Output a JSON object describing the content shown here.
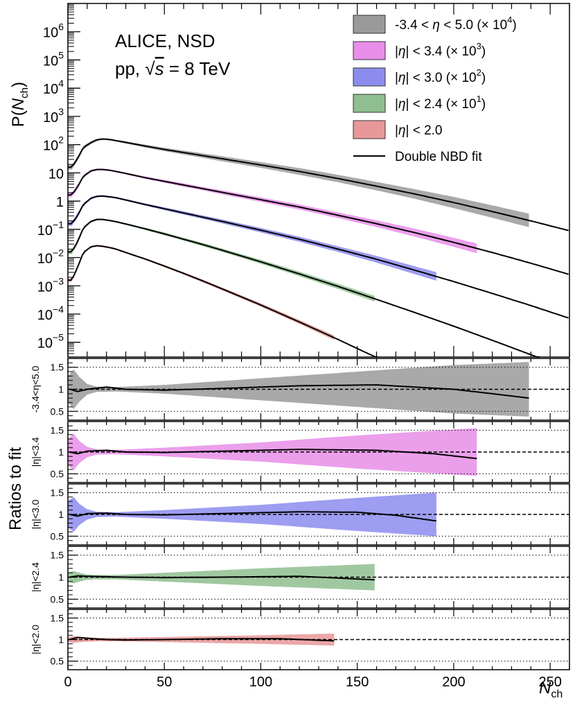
{
  "chart_data": {
    "type": "line",
    "annotation": {
      "collaboration": "ALICE, NSD",
      "system_prefix": "pp, ",
      "sqrt_symbol": "√",
      "energy_var": "s",
      "energy_value": " = 8 TeV"
    },
    "x_axis": {
      "label_main": "N",
      "label_sub": "ch",
      "range": [
        0,
        260
      ],
      "ticks": [
        0,
        50,
        100,
        150,
        200,
        250
      ],
      "tick_labels": [
        "0",
        "50",
        "100",
        "150",
        "200",
        "250"
      ]
    },
    "top_panel": {
      "ylabel_main": "P(",
      "ylabel_var": "N",
      "ylabel_sub": "ch",
      "ylabel_close": ")",
      "scale": "log",
      "ylim": [
        3e-06,
        10000000
      ],
      "y_ticks": [
        {
          "value": 1000000,
          "base": "10",
          "exp": "6"
        },
        {
          "value": 100000,
          "base": "10",
          "exp": "5"
        },
        {
          "value": 10000,
          "base": "10",
          "exp": "4"
        },
        {
          "value": 1000,
          "base": "10",
          "exp": "3"
        },
        {
          "value": 100,
          "base": "10",
          "exp": "2"
        },
        {
          "value": 10,
          "base": "10",
          "exp": ""
        },
        {
          "value": 1,
          "base": "1",
          "exp": ""
        },
        {
          "value": 0.1,
          "base": "10",
          "exp": "−1"
        },
        {
          "value": 0.01,
          "base": "10",
          "exp": "−2"
        },
        {
          "value": 0.001,
          "base": "10",
          "exp": "−3"
        },
        {
          "value": 0.0001,
          "base": "10",
          "exp": "−4"
        },
        {
          "value": 1e-05,
          "base": "10",
          "exp": "−5"
        }
      ]
    },
    "fit_points_x": [
      0,
      2,
      5,
      8,
      12,
      15,
      18,
      22,
      25,
      30,
      40,
      50,
      60,
      70,
      80,
      100,
      120,
      140,
      160,
      180,
      200,
      220,
      240,
      260
    ],
    "series": [
      {
        "name": "-3.4 < η < 5.0 (× 10⁴)",
        "legend": {
          "pre": "-3.4 < ",
          "var": "η",
          "mid": " < 5.0 (× 10",
          "exp": "4",
          "post": ")"
        },
        "color": "#9a9a9a",
        "fill_opacity": 0.85,
        "data_xmax": 239,
        "fit": [
          1.2,
          1.2,
          1.5,
          1.9,
          2.07,
          2.17,
          2.2,
          2.18,
          2.14,
          2.08,
          1.95,
          1.83,
          1.72,
          1.61,
          1.5,
          1.28,
          1.05,
          0.8,
          0.53,
          0.25,
          -0.05,
          -0.37,
          -0.7,
          -1.05
        ],
        "band_halfwidth": [
          0.08,
          0.08,
          0.08,
          0.06,
          0.05,
          0.04,
          0.03,
          0.03,
          0.03,
          0.04,
          0.05,
          0.06,
          0.07,
          0.08,
          0.09,
          0.1,
          0.12,
          0.13,
          0.15,
          0.17,
          0.2,
          0.22,
          0.24,
          0.26
        ],
        "ratio_band": {
          "x": [
            0,
            3,
            6,
            10,
            15,
            25,
            50,
            100,
            150,
            200,
            239
          ],
          "half": [
            0.3,
            0.45,
            0.28,
            0.12,
            0.06,
            0.05,
            0.1,
            0.25,
            0.4,
            0.55,
            0.62
          ]
        },
        "ratio_line": {
          "x": [
            1,
            5,
            10,
            20,
            30,
            50,
            80,
            120,
            160,
            200,
            220,
            239
          ],
          "y": [
            1.0,
            0.95,
            1.0,
            1.05,
            1.0,
            0.98,
            1.02,
            1.08,
            1.1,
            1.0,
            0.9,
            0.8
          ]
        },
        "ratio_ylabel": "-3.4<η<5.0"
      },
      {
        "name": "|η| < 3.4 (× 10³)",
        "legend": {
          "pre": "|",
          "var": "η",
          "mid": "| < 3.4 (× 10",
          "exp": "3",
          "post": ")"
        },
        "color": "#e88ee8",
        "fill_opacity": 0.85,
        "data_xmax": 212,
        "fit": [
          0.22,
          0.22,
          0.5,
          0.88,
          1.07,
          1.12,
          1.12,
          1.09,
          1.05,
          0.98,
          0.83,
          0.7,
          0.57,
          0.44,
          0.31,
          0.05,
          -0.21,
          -0.5,
          -0.8,
          -1.12,
          -1.46,
          -1.82,
          -2.2,
          -2.6
        ],
        "band_halfwidth": [
          0.08,
          0.08,
          0.08,
          0.05,
          0.04,
          0.03,
          0.03,
          0.03,
          0.03,
          0.03,
          0.04,
          0.05,
          0.06,
          0.06,
          0.07,
          0.08,
          0.09,
          0.1,
          0.12,
          0.14,
          0.16,
          0.18,
          0.2,
          0.22
        ],
        "ratio_band": {
          "x": [
            0,
            3,
            6,
            10,
            15,
            25,
            50,
            100,
            150,
            212
          ],
          "half": [
            0.3,
            0.42,
            0.25,
            0.12,
            0.06,
            0.05,
            0.1,
            0.22,
            0.38,
            0.55
          ]
        },
        "ratio_line": {
          "x": [
            1,
            5,
            10,
            20,
            30,
            50,
            80,
            120,
            160,
            190,
            212
          ],
          "y": [
            1.0,
            0.96,
            1.02,
            1.04,
            1.0,
            0.99,
            1.02,
            1.06,
            1.04,
            0.96,
            0.85
          ]
        },
        "ratio_ylabel": "|η|<3.4"
      },
      {
        "name": "|η| < 3.0 (× 10²)",
        "legend": {
          "pre": "|",
          "var": "η",
          "mid": "| < 3.0 (× 10",
          "exp": "2",
          "post": ")"
        },
        "color": "#8c8cee",
        "fill_opacity": 0.85,
        "data_xmax": 191,
        "fit": [
          -0.8,
          -0.8,
          -0.52,
          -0.12,
          0.1,
          0.17,
          0.18,
          0.15,
          0.12,
          0.04,
          -0.12,
          -0.27,
          -0.42,
          -0.57,
          -0.72,
          -1.03,
          -1.35,
          -1.7,
          -2.06,
          -2.45,
          -2.85,
          -3.27,
          -3.7,
          -4.15
        ],
        "band_halfwidth": [
          0.08,
          0.08,
          0.08,
          0.05,
          0.04,
          0.03,
          0.03,
          0.03,
          0.03,
          0.03,
          0.04,
          0.05,
          0.06,
          0.06,
          0.07,
          0.08,
          0.09,
          0.1,
          0.12,
          0.14,
          0.16,
          0.18,
          0.2,
          0.22
        ],
        "ratio_band": {
          "x": [
            0,
            3,
            6,
            10,
            15,
            25,
            50,
            100,
            150,
            191
          ],
          "half": [
            0.3,
            0.4,
            0.24,
            0.12,
            0.06,
            0.05,
            0.1,
            0.22,
            0.38,
            0.5
          ]
        },
        "ratio_line": {
          "x": [
            1,
            5,
            10,
            20,
            30,
            50,
            80,
            120,
            150,
            170,
            191
          ],
          "y": [
            1.0,
            0.96,
            1.02,
            1.03,
            1.0,
            0.99,
            1.02,
            1.06,
            1.05,
            0.98,
            0.85
          ]
        },
        "ratio_ylabel": "|η|<3.0"
      },
      {
        "name": "|η| < 2.4 (× 10¹)",
        "legend": {
          "pre": "|",
          "var": "η",
          "mid": "| < 2.4 (× 10",
          "exp": "1",
          "post": ")"
        },
        "color": "#8fbe8f",
        "fill_opacity": 0.85,
        "data_xmax": 159,
        "fit": [
          -1.8,
          -1.8,
          -1.45,
          -0.95,
          -0.72,
          -0.65,
          -0.65,
          -0.69,
          -0.73,
          -0.81,
          -0.98,
          -1.16,
          -1.35,
          -1.54,
          -1.74,
          -2.15,
          -2.58,
          -3.02,
          -3.48,
          -3.95,
          -4.43,
          -4.93,
          -5.44,
          -5.96
        ],
        "band_halfwidth": [
          0.08,
          0.08,
          0.08,
          0.05,
          0.04,
          0.03,
          0.03,
          0.03,
          0.03,
          0.03,
          0.04,
          0.05,
          0.05,
          0.06,
          0.06,
          0.07,
          0.08,
          0.09,
          0.1,
          0.12,
          0.14,
          0.16,
          0.18,
          0.2
        ],
        "ratio_band": {
          "x": [
            0,
            3,
            6,
            10,
            15,
            25,
            50,
            100,
            159
          ],
          "half": [
            0.1,
            0.14,
            0.1,
            0.06,
            0.05,
            0.05,
            0.1,
            0.2,
            0.3
          ]
        },
        "ratio_line": {
          "x": [
            1,
            5,
            10,
            20,
            30,
            50,
            80,
            120,
            140,
            159
          ],
          "y": [
            1.0,
            1.03,
            1.02,
            1.01,
            1.0,
            0.99,
            1.0,
            1.02,
            0.98,
            0.94
          ]
        },
        "ratio_ylabel": "|η|<2.4"
      },
      {
        "name": "|η| < 2.0",
        "legend": {
          "pre": "|",
          "var": "η",
          "mid": "| < 2.0",
          "exp": "",
          "post": ""
        },
        "color": "#e89898",
        "fill_opacity": 0.85,
        "data_xmax": 138,
        "fit": [
          -2.8,
          -2.8,
          -2.35,
          -1.82,
          -1.62,
          -1.58,
          -1.6,
          -1.65,
          -1.7,
          -1.82,
          -2.05,
          -2.3,
          -2.56,
          -2.83,
          -3.11,
          -3.68,
          -4.28,
          -4.9,
          -5.54,
          -6.2,
          -6.88,
          -7.58,
          -8.3,
          -9.04
        ],
        "band_halfwidth": [
          0.06,
          0.06,
          0.06,
          0.04,
          0.03,
          0.03,
          0.03,
          0.03,
          0.03,
          0.03,
          0.03,
          0.04,
          0.04,
          0.05,
          0.05,
          0.06,
          0.07,
          0.08,
          0.09,
          0.1,
          0.11,
          0.12,
          0.13,
          0.14
        ],
        "ratio_band": {
          "x": [
            0,
            3,
            6,
            10,
            15,
            25,
            50,
            100,
            138
          ],
          "half": [
            0.06,
            0.08,
            0.06,
            0.05,
            0.04,
            0.04,
            0.06,
            0.1,
            0.14
          ]
        },
        "ratio_line": {
          "x": [
            1,
            5,
            10,
            20,
            30,
            50,
            80,
            110,
            138
          ],
          "y": [
            1.0,
            1.05,
            1.03,
            1.0,
            0.99,
            1.0,
            1.02,
            1.02,
            0.97
          ]
        },
        "ratio_ylabel": "|η|<2.0"
      }
    ],
    "fit_legend": "Double NBD fit",
    "fit_color": "#000000",
    "ratio_panels": {
      "common_ylabel": "Ratios to fit",
      "ylim": [
        0.3,
        1.7
      ],
      "y_ticks": [
        0.5,
        1,
        1.5
      ],
      "y_tick_labels": [
        "0.5",
        "1",
        "1.5"
      ]
    }
  }
}
